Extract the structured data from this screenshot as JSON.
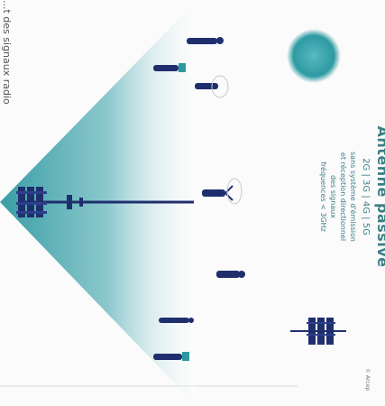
{
  "side_text": "...t des signaux radio",
  "caption": {
    "title": "Antenne passive",
    "technologies": "2G | 3G | 4G | 5G",
    "description": "sans système d'émission\net réception directionnel\ndes signaux\nfréquences < 3GHz"
  },
  "credit": "© Arcep",
  "icons": [
    "antenna-icon",
    "person-icon",
    "signal-zone-icon"
  ],
  "colors": {
    "teal": "#3a9ea6",
    "teal_dark": "#1f7f88",
    "navy": "#1f2f6e",
    "bg": "#fbfbfb"
  }
}
